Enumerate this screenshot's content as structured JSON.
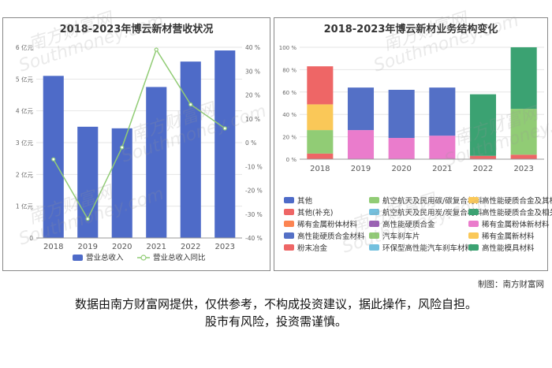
{
  "chart_data": [
    {
      "type": "bar",
      "title": "2018-2023年博云新材营收状况",
      "categories": [
        "2018",
        "2019",
        "2020",
        "2021",
        "2022",
        "2023"
      ],
      "series": [
        {
          "name": "营业总收入",
          "type": "bar",
          "axis": "left",
          "color": "#4e6bc8",
          "values": [
            5.1,
            3.5,
            3.45,
            4.75,
            5.55,
            5.9
          ]
        },
        {
          "name": "营业总收入同比",
          "type": "line",
          "axis": "right",
          "color": "#91cc75",
          "values": [
            -7,
            -32,
            -2,
            39,
            16,
            6
          ]
        }
      ],
      "y_left": {
        "min": 0,
        "max": 6,
        "ticks": [
          0,
          1,
          2,
          3,
          4,
          5,
          6
        ],
        "tick_labels": [
          "0",
          "1 亿元",
          "2 亿元",
          "3 亿元",
          "4 亿元",
          "5 亿元",
          "6 亿元"
        ]
      },
      "y_right": {
        "min": -40,
        "max": 40,
        "ticks": [
          -40,
          -30,
          -20,
          -10,
          0,
          10,
          20,
          30,
          40
        ],
        "tick_labels": [
          "-40 %",
          "-30 %",
          "-20 %",
          "-10 %",
          "0 %",
          "10 %",
          "20 %",
          "30 %",
          "40 %"
        ]
      },
      "legend_position": "bottom"
    },
    {
      "type": "bar",
      "stacked": true,
      "title": "2018-2023年博云新材业务结构变化",
      "categories": [
        "2018",
        "2019",
        "2020",
        "2021",
        "2022",
        "2023"
      ],
      "ylim": [
        0,
        100
      ],
      "y_ticks": [
        0,
        20,
        40,
        60,
        80,
        100
      ],
      "y_tick_labels": [
        "0 %",
        "20 %",
        "40 %",
        "60 %",
        "80 %",
        "100 %"
      ],
      "series": [
        {
          "name": "其他",
          "color": "#4e6bc8",
          "values": [
            0,
            0,
            0,
            0,
            0,
            0
          ]
        },
        {
          "name": "航空航天及民用碳/碳复合材料",
          "color": "#91cc75",
          "values": [
            0,
            0,
            0,
            0,
            0,
            0
          ]
        },
        {
          "name": "高性能硬质合金及其相关材料",
          "color": "#fac858",
          "values": [
            0,
            0,
            0,
            0,
            0,
            0
          ]
        },
        {
          "name": "其他(补充)",
          "color": "#ee6666",
          "values": [
            0,
            0,
            0,
            0,
            0,
            0
          ]
        },
        {
          "name": "航空航天及民用炭/炭复合材料",
          "color": "#73c0de",
          "values": [
            0,
            0,
            0,
            0,
            0,
            0
          ]
        },
        {
          "name": "高性能硬质合金及相关材料",
          "color": "#3ba272",
          "values": [
            0,
            0,
            0,
            0,
            0,
            0
          ]
        },
        {
          "name": "稀有金属粉体材料",
          "color": "#fc8452",
          "values": [
            0,
            0,
            0,
            0,
            0,
            0
          ]
        },
        {
          "name": "高性能硬质合金",
          "color": "#9a60b4",
          "values": [
            0,
            0,
            0,
            0,
            0,
            0
          ]
        },
        {
          "name": "稀有金属粉体新材料",
          "color": "#ea7ccc",
          "values": [
            0,
            26,
            19,
            21,
            0,
            0
          ]
        },
        {
          "name": "高性能硬质合金材料",
          "color": "#5470c6",
          "values": [
            0,
            38,
            43,
            43,
            0,
            0
          ]
        },
        {
          "name": "汽车刹车片",
          "color": "#91cc75",
          "values": [
            21,
            0,
            0,
            0,
            0,
            41
          ]
        },
        {
          "name": "稀有金属新材料",
          "color": "#fac858",
          "values": [
            23,
            0,
            0,
            0,
            0,
            0
          ]
        },
        {
          "name": "粉末冶金",
          "color": "#ee6666",
          "values": [
            5,
            0,
            0,
            0,
            3,
            4
          ]
        },
        {
          "name": "环保型高性能汽车刹车材料",
          "color": "#73c0de",
          "values": [
            0,
            0,
            0,
            0,
            0,
            0
          ]
        },
        {
          "name": "高性能模具材料",
          "color": "#3ba272",
          "values": [
            0,
            0,
            0,
            0,
            55,
            55
          ]
        },
        {
          "name": "(红色顶段)",
          "color": "#ee6666",
          "values": [
            34,
            0,
            0,
            0,
            0,
            0
          ],
          "legend": false
        }
      ],
      "stack_order_note": "bottom-to-top: 粉末冶金, 汽车刹车片, 稀有金属新材料, 稀有金属粉体新材料, 高性能硬质合金材料, 高性能模具材料, top segment",
      "legend_position": "bottom"
    }
  ],
  "credit": "制图：南方财富网",
  "disclaimer_line1": "数据由南方财富网提供，仅供参考，不构成投资建议，据此操作，风险自担。",
  "disclaimer_line2": "股市有风险，投资需谨慎。",
  "watermark_text_cn": "南方财富网",
  "watermark_text_en": "Southmoney.com"
}
